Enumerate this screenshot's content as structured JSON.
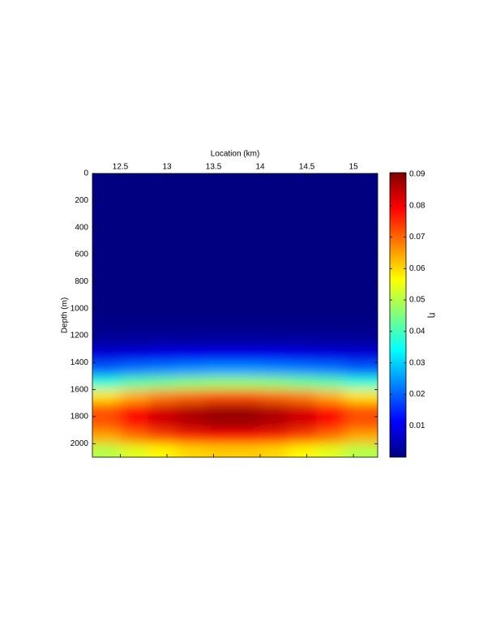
{
  "chart_data": {
    "type": "heatmap",
    "x_label": "Location (km)",
    "y_label": "Depth (m)",
    "colorbar_label": "η",
    "colormap": "jet",
    "xlim": [
      12.2,
      15.26
    ],
    "xticks": [
      12.5,
      13,
      13.5,
      14,
      14.5,
      15
    ],
    "ylim": [
      0,
      2100
    ],
    "yticks": [
      0,
      200,
      400,
      600,
      800,
      1000,
      1200,
      1400,
      1600,
      1800,
      2000
    ],
    "y_reversed": true,
    "clim": [
      0,
      0.0905
    ],
    "cticks": [
      0.01,
      0.02,
      0.03,
      0.04,
      0.05,
      0.06,
      0.07,
      0.08,
      0.09
    ],
    "x": [
      12.35,
      12.65,
      12.95,
      13.25,
      13.55,
      13.85,
      14.15,
      14.45,
      14.75,
      15.05
    ],
    "y": [
      50,
      150,
      250,
      350,
      450,
      550,
      650,
      750,
      850,
      950,
      1050,
      1150,
      1250,
      1350,
      1450,
      1550,
      1650,
      1750,
      1850,
      1950,
      2050
    ],
    "values": [
      [
        0,
        0,
        0,
        0,
        0,
        0,
        0,
        0,
        0,
        0
      ],
      [
        0,
        0,
        0,
        0,
        0,
        0,
        0,
        0,
        0,
        0
      ],
      [
        0,
        0,
        0,
        0,
        0,
        0,
        0,
        0,
        0,
        0
      ],
      [
        0,
        0,
        0,
        0,
        0,
        0,
        0,
        0,
        0,
        0
      ],
      [
        0,
        0,
        0,
        0,
        0,
        0,
        0,
        0,
        0,
        0
      ],
      [
        0,
        0,
        0,
        0,
        0,
        0,
        0,
        0,
        0,
        0
      ],
      [
        0,
        0,
        0,
        0,
        0,
        0,
        0,
        0,
        0,
        0
      ],
      [
        0,
        0,
        0,
        0,
        0,
        0,
        0,
        0,
        0,
        0
      ],
      [
        0,
        0,
        0,
        0,
        0,
        0,
        0,
        0,
        0,
        0
      ],
      [
        0,
        0,
        0,
        0,
        0,
        0,
        0,
        0,
        0,
        0
      ],
      [
        0.0002,
        0.0002,
        0.0002,
        0.0002,
        0.0002,
        0.0002,
        0.0002,
        0.0002,
        0.0002,
        0.0002
      ],
      [
        0.0008,
        0.0009,
        0.0009,
        0.001,
        0.001,
        0.001,
        0.001,
        0.0009,
        0.0009,
        0.0008
      ],
      [
        0.0029,
        0.0031,
        0.0033,
        0.0034,
        0.0035,
        0.0035,
        0.0034,
        0.0033,
        0.0031,
        0.0029
      ],
      [
        0.0086,
        0.0093,
        0.0099,
        0.0103,
        0.0105,
        0.0105,
        0.0103,
        0.0099,
        0.0093,
        0.0086
      ],
      [
        0.02,
        0.022,
        0.023,
        0.024,
        0.025,
        0.025,
        0.024,
        0.023,
        0.022,
        0.02
      ],
      [
        0.038,
        0.042,
        0.044,
        0.046,
        0.047,
        0.047,
        0.046,
        0.044,
        0.042,
        0.038
      ],
      [
        0.059,
        0.064,
        0.068,
        0.07,
        0.072,
        0.072,
        0.07,
        0.068,
        0.064,
        0.059
      ],
      [
        0.072,
        0.078,
        0.083,
        0.086,
        0.088,
        0.088,
        0.086,
        0.083,
        0.078,
        0.072
      ],
      [
        0.072,
        0.078,
        0.083,
        0.086,
        0.088,
        0.088,
        0.086,
        0.083,
        0.078,
        0.072
      ],
      [
        0.064,
        0.069,
        0.073,
        0.076,
        0.078,
        0.078,
        0.076,
        0.073,
        0.069,
        0.064
      ],
      [
        0.05,
        0.054,
        0.057,
        0.06,
        0.061,
        0.061,
        0.06,
        0.057,
        0.054,
        0.05
      ]
    ]
  }
}
